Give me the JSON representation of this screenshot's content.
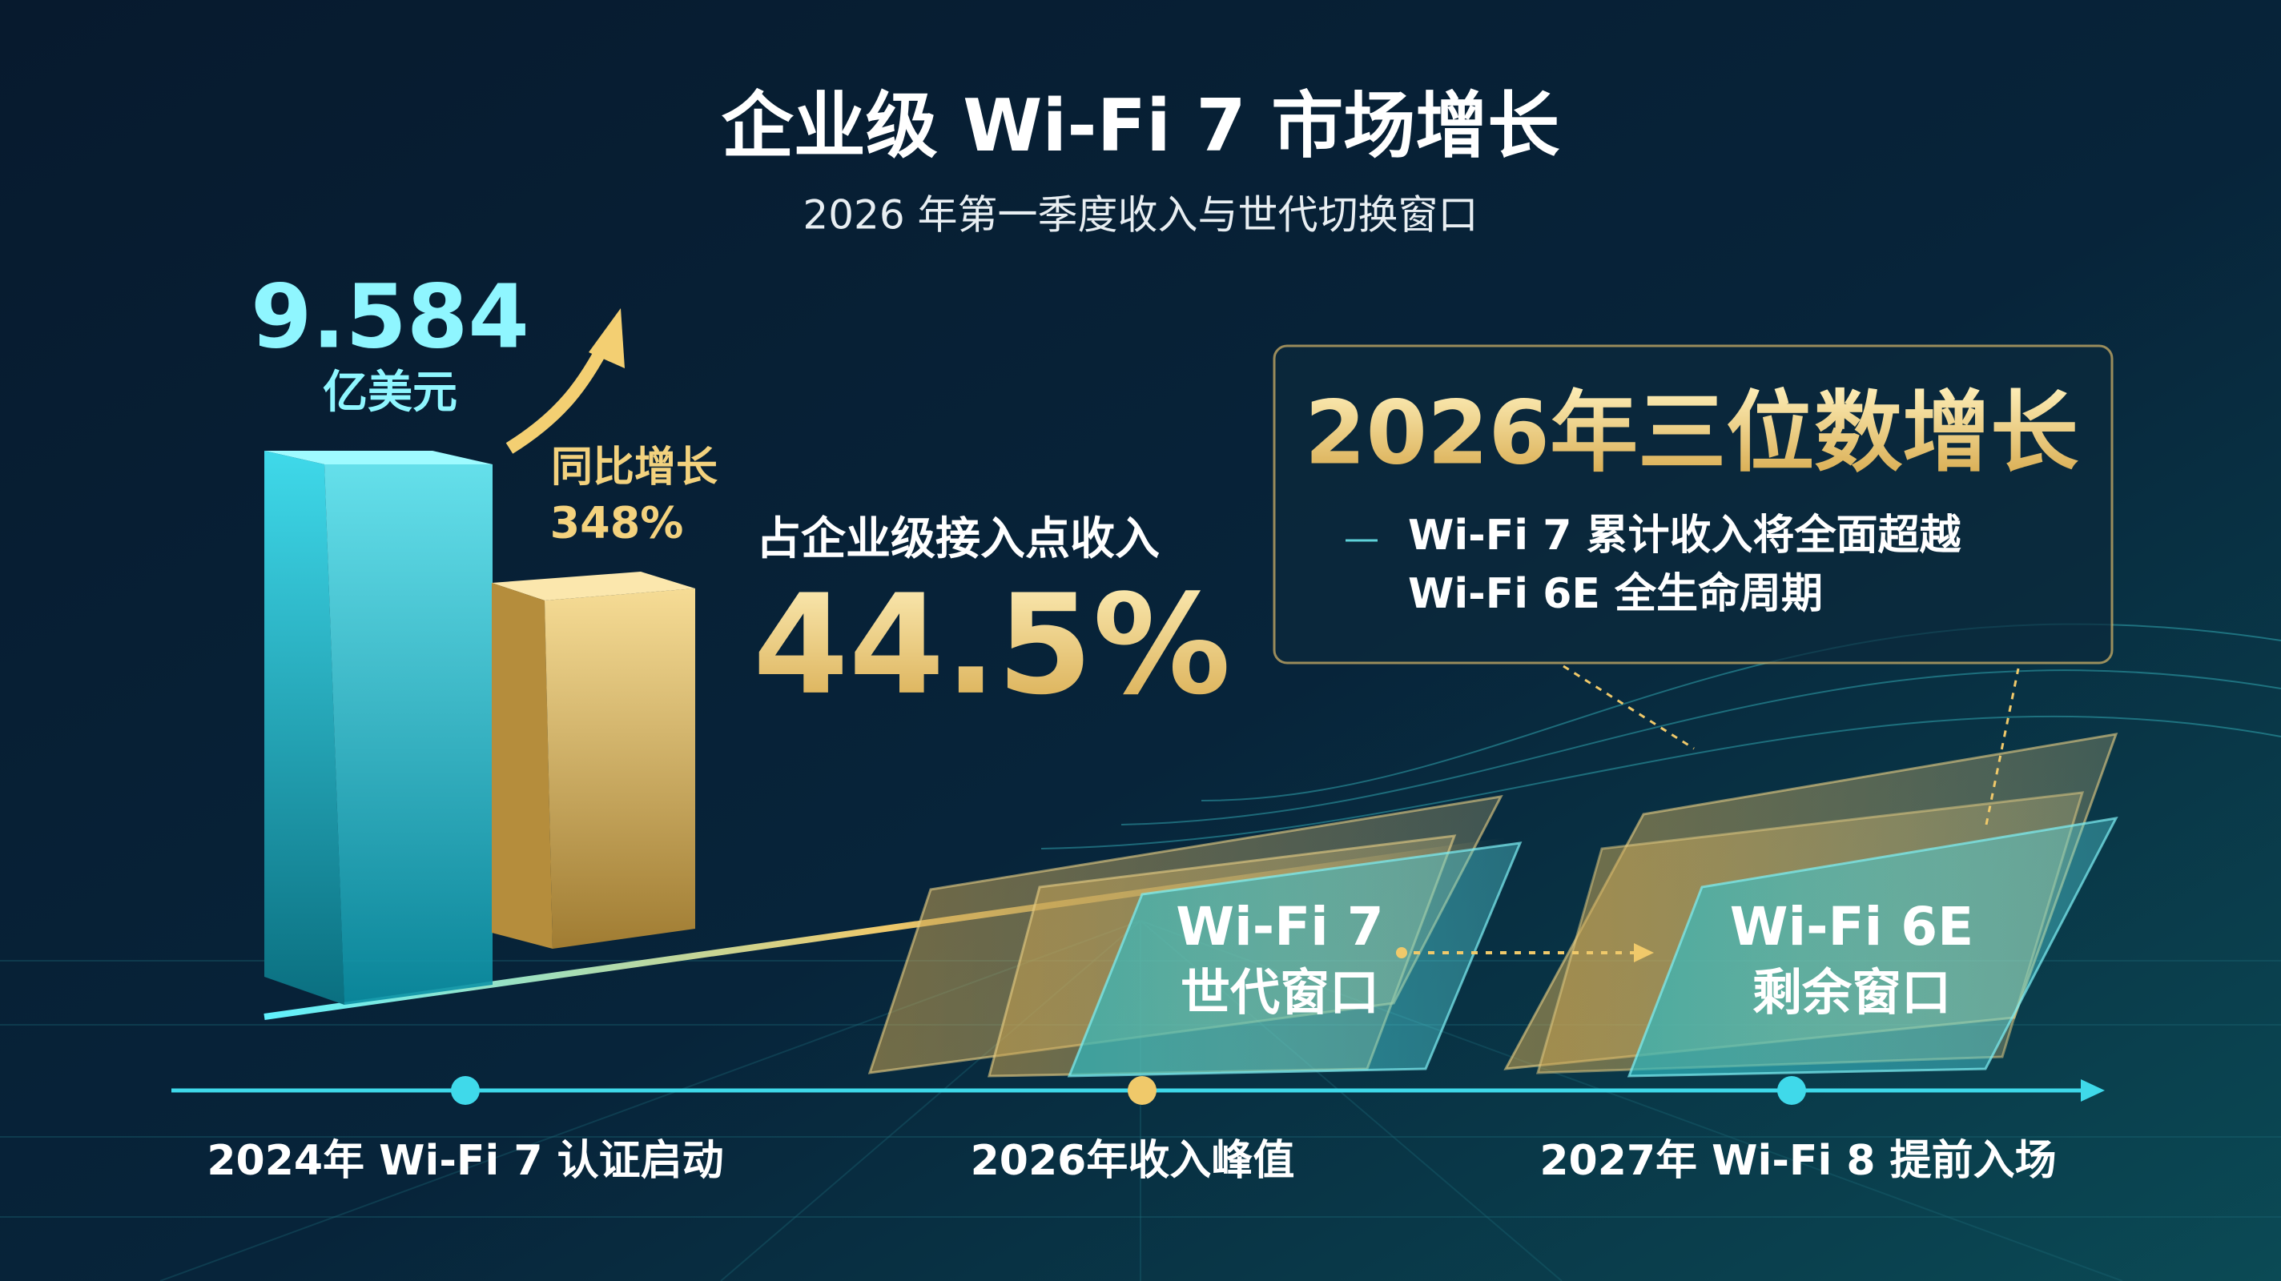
{
  "header": {
    "title": "企业级 Wi-Fi 7 市场增长",
    "subtitle": "2026 年第一季度收入与世代切换窗口"
  },
  "revenue": {
    "value": "9.584",
    "unit": "亿美元"
  },
  "growth": {
    "label": "同比增长",
    "value": "348%"
  },
  "share": {
    "label": "占企业级接入点收入",
    "value": "44.5%"
  },
  "callout": {
    "title": "2026年三位数增长",
    "lines": [
      "Wi-Fi 7 累计收入将全面超越",
      "Wi-Fi 6E 全生命周期"
    ]
  },
  "windows": [
    {
      "name": "Wi-Fi 7",
      "label": "世代窗口"
    },
    {
      "name": "Wi-Fi 6E",
      "label": "剩余窗口"
    }
  ],
  "timeline": [
    "2024年 Wi-Fi 7 认证启动",
    "2026年收入峰值",
    "2027年 Wi-Fi 8 提前入场"
  ]
}
